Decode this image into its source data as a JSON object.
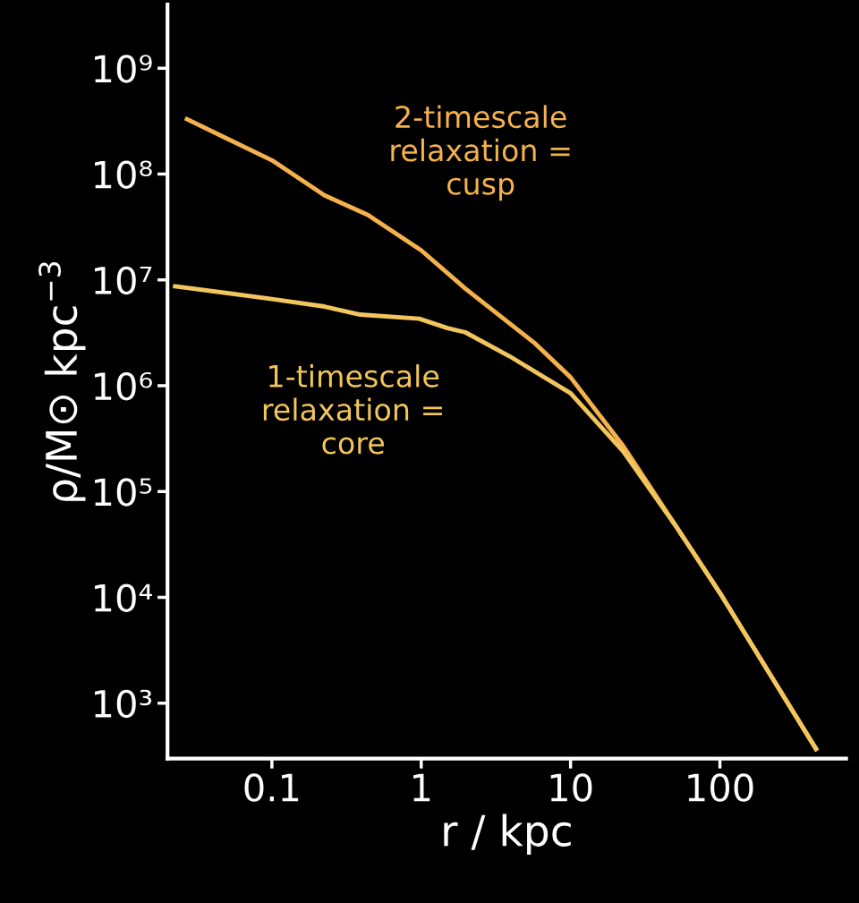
{
  "chart_data": {
    "type": "line",
    "xlabel": "r / kpc",
    "ylabel": "ρ/M⊙ kpc$^{−3}$",
    "log": "xy",
    "grid": false,
    "legend": false,
    "marker": "none",
    "line_style": "solid",
    "xlim": [
      0.02,
      700
    ],
    "xticks": [
      {
        "value": 0.1,
        "label": "0.1"
      },
      {
        "value": 1,
        "label": "1"
      },
      {
        "value": 10,
        "label": "10"
      },
      {
        "value": 100,
        "label": "100"
      }
    ],
    "ylim": [
      300,
      4000000000
    ],
    "yticks": [
      {
        "value": 1000,
        "label": "10³"
      },
      {
        "value": 10000,
        "label": "10⁴"
      },
      {
        "value": 100000,
        "label": "10⁵"
      },
      {
        "value": 1000000,
        "label": "10⁶"
      },
      {
        "value": 10000000,
        "label": "10⁷"
      },
      {
        "value": 100000000,
        "label": "10⁸"
      },
      {
        "value": 1000000000,
        "label": "10⁹"
      }
    ],
    "series": [
      {
        "name": "2-timescale relaxation = cusp",
        "color": "#f5b24c",
        "x": [
          0.027,
          0.1,
          0.225,
          0.44,
          1,
          1.97,
          5.8,
          10,
          22.5,
          50.8,
          100,
          440
        ],
        "values": [
          330000000,
          135000000,
          63000000,
          41000000,
          19000000,
          8300000,
          2500000,
          1200000,
          270000,
          47000,
          11000,
          370
        ]
      },
      {
        "name": "1-timescale relaxation = core",
        "color": "#f2c65c",
        "x": [
          0.0225,
          0.1,
          0.225,
          0.39,
          0.97,
          1.5,
          1.97,
          3.9,
          10,
          22.5,
          50.8,
          100,
          440
        ],
        "values": [
          8700000,
          6600000,
          5600000,
          4700000,
          4300000,
          3500000,
          3200000,
          1900000,
          850000,
          240000,
          47000,
          11000,
          370
        ]
      }
    ]
  }
}
